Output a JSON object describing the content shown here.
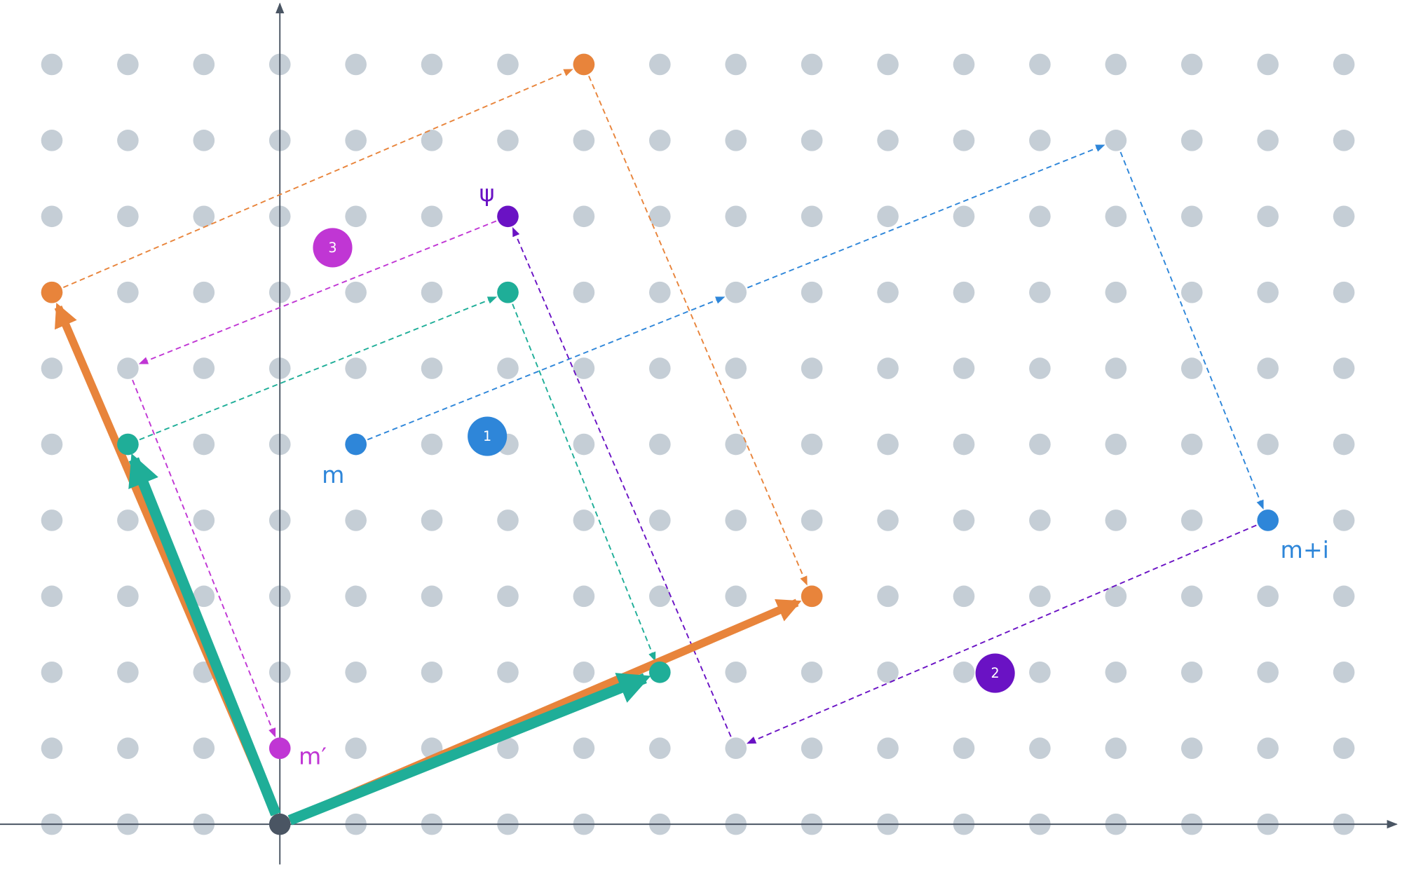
{
  "labels": {
    "psi": "ψ",
    "m": "m",
    "m_plus_i": "m+i",
    "m_prime": "m′"
  },
  "steps": [
    "1",
    "2",
    "3"
  ]
}
